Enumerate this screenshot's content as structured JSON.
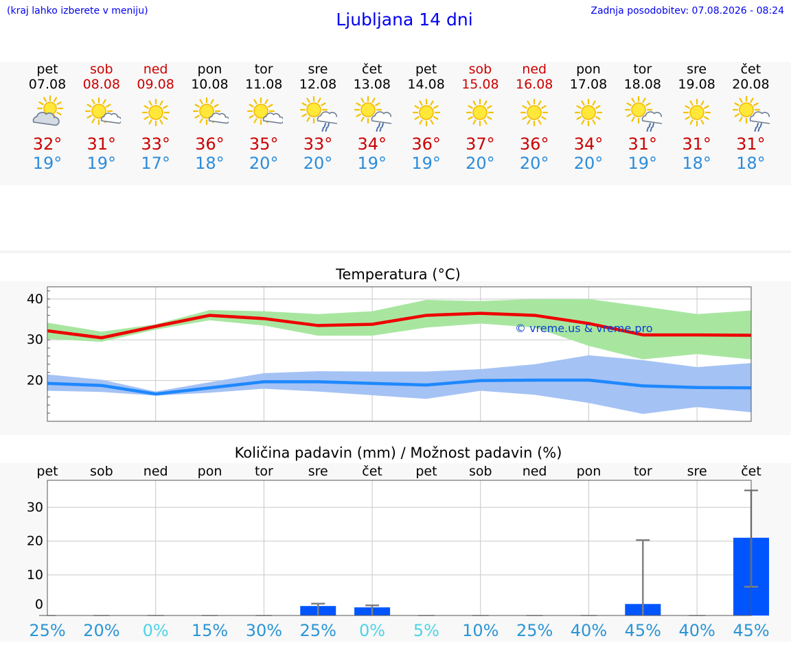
{
  "header": {
    "hint": "(kraj lahko izberete v meniju)",
    "title": "Ljubljana 14 dni",
    "updated": "Zadnja posodobitev: 07.08.2026 - 08:24"
  },
  "days": [
    {
      "name": "pet",
      "date": "07.08",
      "icon": "partly-cloudy-icon",
      "max": "32°",
      "min": "19°",
      "weekend": false
    },
    {
      "name": "sob",
      "date": "08.08",
      "icon": "mostly-sunny-icon",
      "max": "31°",
      "min": "19°",
      "weekend": true
    },
    {
      "name": "ned",
      "date": "09.08",
      "icon": "sunny-icon",
      "max": "33°",
      "min": "17°",
      "weekend": true
    },
    {
      "name": "pon",
      "date": "10.08",
      "icon": "mostly-sunny-icon",
      "max": "36°",
      "min": "18°",
      "weekend": false
    },
    {
      "name": "tor",
      "date": "11.08",
      "icon": "mostly-sunny-icon",
      "max": "35°",
      "min": "20°",
      "weekend": false
    },
    {
      "name": "sre",
      "date": "12.08",
      "icon": "sun-rain-icon",
      "max": "33°",
      "min": "20°",
      "weekend": false
    },
    {
      "name": "čet",
      "date": "13.08",
      "icon": "sun-rain-icon",
      "max": "34°",
      "min": "19°",
      "weekend": false
    },
    {
      "name": "pet",
      "date": "14.08",
      "icon": "sunny-icon",
      "max": "36°",
      "min": "19°",
      "weekend": false
    },
    {
      "name": "sob",
      "date": "15.08",
      "icon": "sunny-icon",
      "max": "37°",
      "min": "20°",
      "weekend": true
    },
    {
      "name": "ned",
      "date": "16.08",
      "icon": "sunny-icon",
      "max": "36°",
      "min": "20°",
      "weekend": true
    },
    {
      "name": "pon",
      "date": "17.08",
      "icon": "sunny-icon",
      "max": "34°",
      "min": "20°",
      "weekend": false
    },
    {
      "name": "tor",
      "date": "18.08",
      "icon": "sun-rain-icon",
      "max": "31°",
      "min": "19°",
      "weekend": false
    },
    {
      "name": "sre",
      "date": "19.08",
      "icon": "sunny-icon",
      "max": "31°",
      "min": "18°",
      "weekend": false
    },
    {
      "name": "čet",
      "date": "20.08",
      "icon": "sun-rain-icon",
      "max": "31°",
      "min": "18°",
      "weekend": false
    }
  ],
  "colors": {
    "max_line": "#ee0000",
    "max_band": "#a8e6a0",
    "min_line": "#1e88ff",
    "min_band": "#a4c2f4",
    "bar": "#0055ff",
    "weekend": "#cc0000",
    "pct_normal": "#2a95d5",
    "pct_zero": "#4fd3e6"
  },
  "chart_data": [
    {
      "type": "line",
      "title": "Temperatura (°C)",
      "watermark": "© vreme.us & vreme.pro",
      "ylim": [
        10,
        43
      ],
      "yticks": [
        20,
        30,
        40
      ],
      "grid": true,
      "x": [
        0,
        1,
        2,
        3,
        4,
        5,
        6,
        7,
        8,
        9,
        10,
        11,
        12,
        13
      ],
      "series": [
        {
          "role": "max",
          "values": [
            32.2,
            30.5,
            33.3,
            36,
            35.2,
            33.5,
            33.8,
            36,
            36.5,
            36,
            34,
            31.2,
            31.2,
            31.1
          ],
          "band_low": [
            30.2,
            29.5,
            32.5,
            34.8,
            33.5,
            31,
            31,
            33,
            34,
            33,
            28.5,
            25.2,
            26.5,
            25.2
          ],
          "band_high": [
            34.2,
            32,
            33.8,
            37.3,
            37,
            36.3,
            37,
            39.8,
            39.5,
            40,
            40,
            38.2,
            36.3,
            37.2
          ]
        },
        {
          "role": "min",
          "values": [
            19.3,
            18.8,
            16.7,
            18.2,
            19.7,
            19.7,
            19.3,
            18.9,
            20,
            20.1,
            20.1,
            18.7,
            18.3,
            18.2
          ],
          "band_low": [
            17.5,
            17.2,
            16.3,
            17,
            18,
            17.3,
            16.4,
            15.5,
            17.5,
            16.5,
            14.5,
            11.8,
            13.5,
            12.2
          ],
          "band_high": [
            21.5,
            20.2,
            17.3,
            19.6,
            21.8,
            22.3,
            22.2,
            22.2,
            22.8,
            24,
            26.2,
            25,
            23.3,
            24.3
          ]
        }
      ]
    },
    {
      "type": "bar",
      "title": "Količina padavin (mm) / Možnost padavin (%)",
      "categories": [
        "pet",
        "sob",
        "ned",
        "pon",
        "tor",
        "sre",
        "čet",
        "pet",
        "sob",
        "ned",
        "pon",
        "tor",
        "sre",
        "čet"
      ],
      "values": [
        0,
        0,
        0,
        0,
        0,
        0.8,
        0.4,
        0,
        0,
        0,
        0,
        1.4,
        0,
        21
      ],
      "error_high": [
        0,
        0,
        0,
        0,
        0,
        1.5,
        1,
        0,
        0,
        0,
        0,
        20.3,
        0,
        35
      ],
      "error_low": [
        0,
        0,
        0,
        0,
        0,
        0,
        0,
        0,
        0,
        0,
        0,
        0,
        0,
        6.5
      ],
      "ylim": [
        -2,
        38
      ],
      "yticks": [
        0,
        10,
        20,
        30
      ],
      "grid": true,
      "probability": [
        "25%",
        "20%",
        "0%",
        "15%",
        "30%",
        "25%",
        "0%",
        "5%",
        "10%",
        "25%",
        "40%",
        "45%",
        "40%",
        "45%"
      ]
    }
  ]
}
